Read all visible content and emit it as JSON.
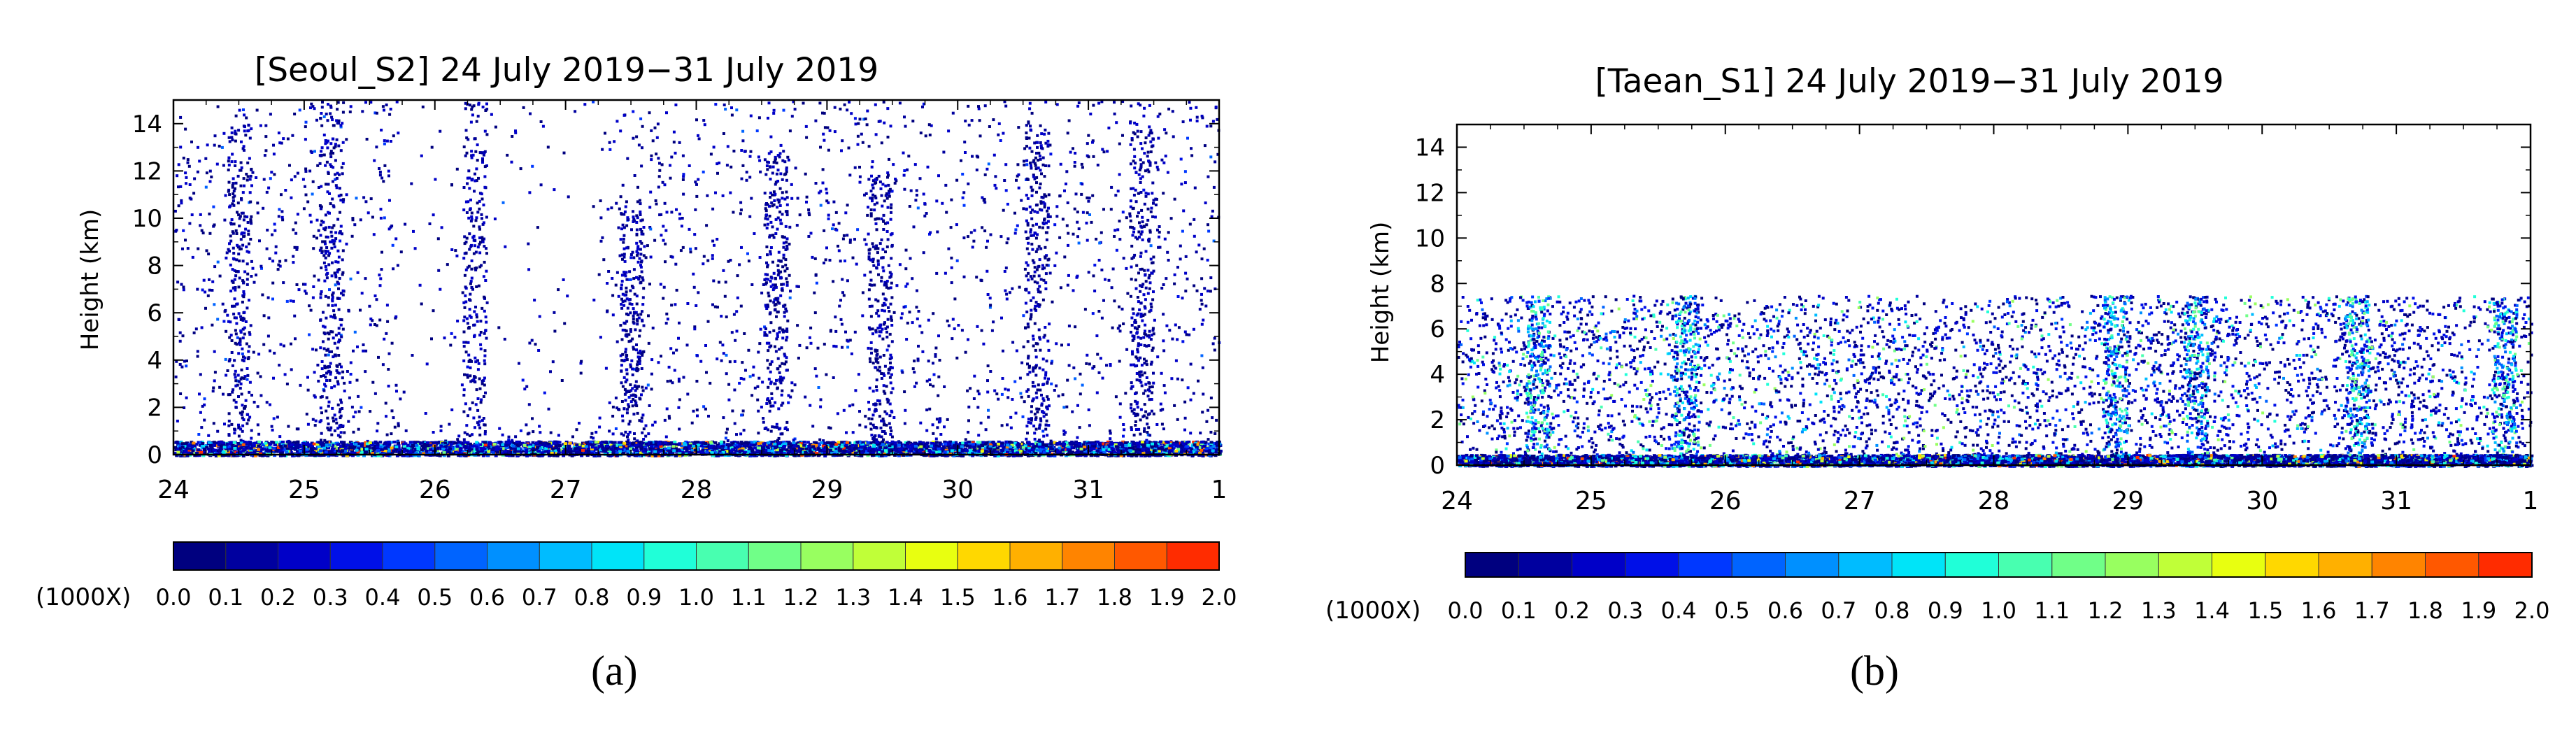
{
  "figure": {
    "caption_a": "(a)",
    "caption_b": "(b)"
  },
  "palette": [
    "#00007f",
    "#00009f",
    "#0000c8",
    "#0010e8",
    "#0038ff",
    "#0064ff",
    "#0090ff",
    "#00bcff",
    "#00e4f8",
    "#20ffd8",
    "#48ffb0",
    "#70ff88",
    "#98ff60",
    "#c0ff38",
    "#e8ff10",
    "#ffd800",
    "#ffb000",
    "#ff8400",
    "#ff5800",
    "#ff2c00",
    "#c80000"
  ],
  "chart_data": [
    {
      "type": "heatmap",
      "panel": "a",
      "title": "[Seoul_S2] 24 July 2019−31 July 2019",
      "ylabel": "Height (km)",
      "xlabel": "",
      "xlim": [
        24,
        32
      ],
      "ylim": [
        0,
        15
      ],
      "xticks": [
        "24",
        "25",
        "26",
        "27",
        "28",
        "29",
        "30",
        "31",
        "1"
      ],
      "yticks": [
        "0",
        "2",
        "4",
        "6",
        "8",
        "10",
        "12",
        "14"
      ],
      "colorbar": {
        "unit_label": "(1000X)",
        "range": [
          0.0,
          2.0
        ],
        "labels": [
          "0.0",
          "0.1",
          "0.2",
          "0.3",
          "0.4",
          "0.5",
          "0.6",
          "0.7",
          "0.8",
          "0.9",
          "1.0",
          "1.1",
          "1.2",
          "1.3",
          "1.4",
          "1.5",
          "1.6",
          "1.7",
          "1.8",
          "1.9",
          "2.0"
        ]
      },
      "max_height_km": 15,
      "dense_layer_top_km": 0.6,
      "columns": [
        [
          24.5,
          14
        ],
        [
          25.2,
          15
        ],
        [
          26.3,
          15
        ],
        [
          27.5,
          11
        ],
        [
          28.6,
          13
        ],
        [
          29.4,
          12
        ],
        [
          30.6,
          14
        ],
        [
          31.4,
          14
        ]
      ]
    },
    {
      "type": "heatmap",
      "panel": "b",
      "title": "[Taean_S1] 24 July 2019−31 July 2019",
      "ylabel": "Height (km)",
      "xlabel": "",
      "xlim": [
        24,
        32
      ],
      "ylim": [
        0,
        15
      ],
      "xticks": [
        "24",
        "25",
        "26",
        "27",
        "28",
        "29",
        "30",
        "31",
        "1"
      ],
      "yticks": [
        "0",
        "2",
        "4",
        "6",
        "8",
        "10",
        "12",
        "14"
      ],
      "colorbar": {
        "unit_label": "(1000X)",
        "range": [
          0.0,
          2.0
        ],
        "labels": [
          "0.0",
          "0.1",
          "0.2",
          "0.3",
          "0.4",
          "0.5",
          "0.6",
          "0.7",
          "0.8",
          "0.9",
          "1.0",
          "1.1",
          "1.2",
          "1.3",
          "1.4",
          "1.5",
          "1.6",
          "1.7",
          "1.8",
          "1.9",
          "2.0"
        ]
      },
      "max_height_km": 7.5,
      "dense_layer_top_km": 0.5,
      "columns": [
        [
          24.6,
          7.5
        ],
        [
          25.7,
          7.5
        ],
        [
          28.9,
          7.5
        ],
        [
          29.5,
          7.5
        ],
        [
          30.7,
          7.5
        ],
        [
          31.8,
          7.5
        ]
      ]
    }
  ]
}
